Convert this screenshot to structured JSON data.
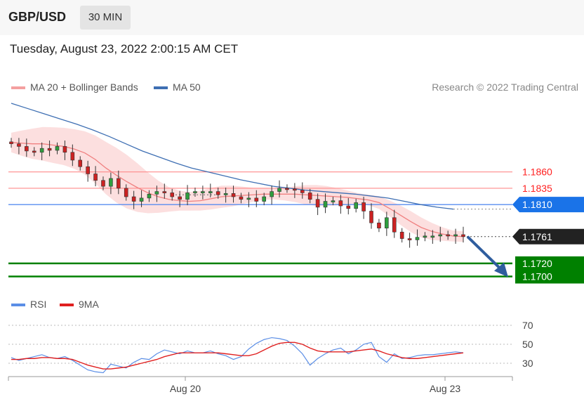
{
  "header": {
    "symbol": "GBP/USD",
    "timeframe": "30 MIN"
  },
  "date_text": "Tuesday, August 23, 2022 2:00:15 AM CET",
  "legend": {
    "ma20": "MA 20 + Bollinger Bands",
    "ma50": "MA 50",
    "rsi": "RSI",
    "rsi_ma": "9MA"
  },
  "credit": "Research © 2022 Trading Central",
  "colors": {
    "ma20": "#f08080",
    "ma50": "#3e6fb3",
    "band": "#fcd9d9",
    "up": "#2e9e3e",
    "down": "#cc2222",
    "resistance": "#ff2020",
    "pivot": "#1a73e8",
    "support": "#008000",
    "price": "#222222",
    "rsi": "#5b8ee6",
    "rsi_ma": "#e02020"
  },
  "chart_data": {
    "type": "line",
    "instrument": "GBP/USD",
    "interval": "30 MIN",
    "x_ticks": [
      "Aug 20",
      "Aug 23"
    ],
    "levels": [
      {
        "label": "1.1860",
        "value": 1.186,
        "kind": "resistance"
      },
      {
        "label": "1.1835",
        "value": 1.1835,
        "kind": "resistance"
      },
      {
        "label": "1.1810",
        "value": 1.181,
        "kind": "pivot"
      },
      {
        "label": "1.1761",
        "value": 1.1761,
        "kind": "last"
      },
      {
        "label": "1.1720",
        "value": 1.172,
        "kind": "support"
      },
      {
        "label": "1.1700",
        "value": 1.17,
        "kind": "support"
      }
    ],
    "price_range": [
      1.1693,
      1.1965
    ],
    "series": [
      {
        "name": "MA 20 + Bollinger Bands",
        "values": [
          1.1905,
          1.1904,
          1.1903,
          1.1903,
          1.1901,
          1.1899,
          1.1895,
          1.1889,
          1.1879,
          1.1866,
          1.1855,
          1.1845,
          1.1836,
          1.1828,
          1.1822,
          1.1818,
          1.1816,
          1.1815,
          1.1816,
          1.1819,
          1.1822,
          1.1823,
          1.1824,
          1.1825,
          1.1826,
          1.1826,
          1.1826,
          1.1826,
          1.1825,
          1.1824,
          1.1823,
          1.1822,
          1.1821,
          1.1819,
          1.1817,
          1.1813,
          1.1804,
          1.1794,
          1.1784,
          1.1775,
          1.1769,
          1.1765,
          1.1762,
          1.1761
        ]
      },
      {
        "name": "MA 50",
        "values": [
          1.1965,
          1.1957,
          1.1949,
          1.1941,
          1.1933,
          1.1924,
          1.1914,
          1.1903,
          1.1892,
          1.1883,
          1.1874,
          1.1866,
          1.186,
          1.1854,
          1.1848,
          1.1843,
          1.1838,
          1.1835,
          1.1832,
          1.183,
          1.1828,
          1.1826,
          1.1823,
          1.182,
          1.1815,
          1.181,
          1.1806,
          1.1803
        ]
      }
    ],
    "candles_close": [
      1.1903,
      1.1899,
      1.1892,
      1.189,
      1.1896,
      1.1893,
      1.1899,
      1.189,
      1.1878,
      1.1868,
      1.1857,
      1.1847,
      1.1838,
      1.185,
      1.1835,
      1.1822,
      1.1815,
      1.182,
      1.1826,
      1.183,
      1.1828,
      1.1822,
      1.1818,
      1.1828,
      1.183,
      1.183,
      1.183,
      1.1825,
      1.1827,
      1.1822,
      1.1818,
      1.182,
      1.1815,
      1.1822,
      1.183,
      1.1835,
      1.1834,
      1.1832,
      1.1828,
      1.1818,
      1.1806,
      1.1815,
      1.1816,
      1.1808,
      1.1804,
      1.1813,
      1.18,
      1.1782,
      1.1774,
      1.179,
      1.1768,
      1.1758,
      1.1756,
      1.176,
      1.1762,
      1.1762,
      1.1764,
      1.1762,
      1.1764,
      1.1761
    ],
    "rsi": {
      "levels": [
        70,
        50,
        30
      ],
      "range": [
        15,
        80
      ],
      "rsi_values": [
        36,
        33,
        35,
        37,
        39,
        36,
        35,
        37,
        33,
        28,
        23,
        21,
        20,
        29,
        27,
        25,
        31,
        35,
        34,
        40,
        44,
        42,
        40,
        43,
        41,
        41,
        43,
        40,
        38,
        34,
        37,
        45,
        51,
        55,
        57,
        56,
        54,
        48,
        40,
        28,
        35,
        40,
        44,
        46,
        40,
        44,
        50,
        52,
        37,
        31,
        40,
        35,
        36,
        38,
        39,
        39,
        40,
        41,
        42,
        41
      ],
      "ma_values": [
        34,
        34,
        35,
        35,
        36,
        36,
        35,
        35,
        34,
        31,
        28,
        26,
        24,
        24,
        25,
        26,
        28,
        30,
        32,
        34,
        37,
        39,
        41,
        41,
        41,
        41,
        41,
        41,
        40,
        39,
        38,
        38,
        40,
        44,
        48,
        51,
        52,
        52,
        50,
        46,
        43,
        42,
        42,
        42,
        42,
        43,
        44,
        45,
        43,
        40,
        38,
        36,
        35,
        35,
        36,
        37,
        38,
        39,
        40,
        41
      ]
    },
    "forecast": "down"
  }
}
